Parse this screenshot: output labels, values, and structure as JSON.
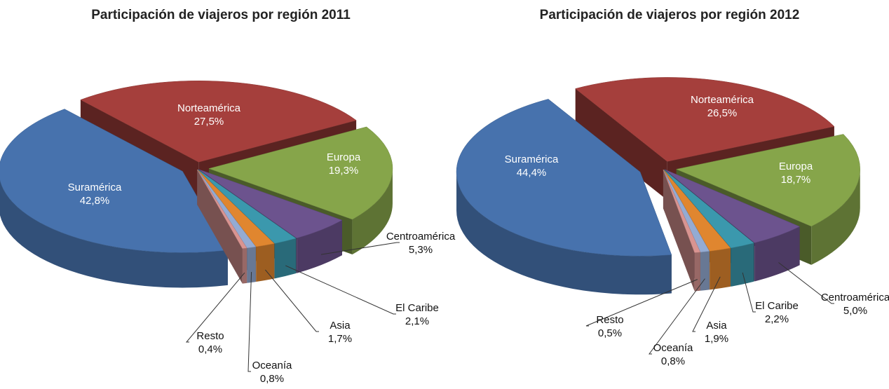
{
  "chart_data": [
    {
      "type": "pie3d",
      "title": "Participación de viajeros por región 2011",
      "categories": [
        "Norteamérica",
        "Europa",
        "Centroamérica",
        "El Caribe",
        "Asia",
        "Oceanía",
        "Resto",
        "Suramérica"
      ],
      "values": [
        27.5,
        19.3,
        5.3,
        2.1,
        1.7,
        0.8,
        0.4,
        42.8
      ],
      "value_labels": [
        "27,5%",
        "19,3%",
        "5,3%",
        "2,1%",
        "1,7%",
        "0,8%",
        "0,4%",
        "42,8%"
      ],
      "colors": [
        "#a53f3c",
        "#86a54a",
        "#6c538e",
        "#3b98ad",
        "#e0862f",
        "#94abd3",
        "#d99491",
        "#4772ad"
      ]
    },
    {
      "type": "pie3d",
      "title": "Participación de viajeros por región 2012",
      "categories": [
        "Norteamérica",
        "Europa",
        "Centroamérica",
        "El Caribe",
        "Asia",
        "Oceanía",
        "Resto",
        "Suramérica"
      ],
      "values": [
        26.5,
        18.7,
        5.0,
        2.2,
        1.9,
        0.8,
        0.5,
        44.4
      ],
      "value_labels": [
        "26,5%",
        "18,7%",
        "5,0%",
        "2,2%",
        "1,9%",
        "0,8%",
        "0,5%",
        "44,4%"
      ],
      "colors": [
        "#a53f3c",
        "#86a54a",
        "#6c538e",
        "#3b98ad",
        "#e0862f",
        "#94abd3",
        "#d99491",
        "#4772ad"
      ]
    }
  ]
}
